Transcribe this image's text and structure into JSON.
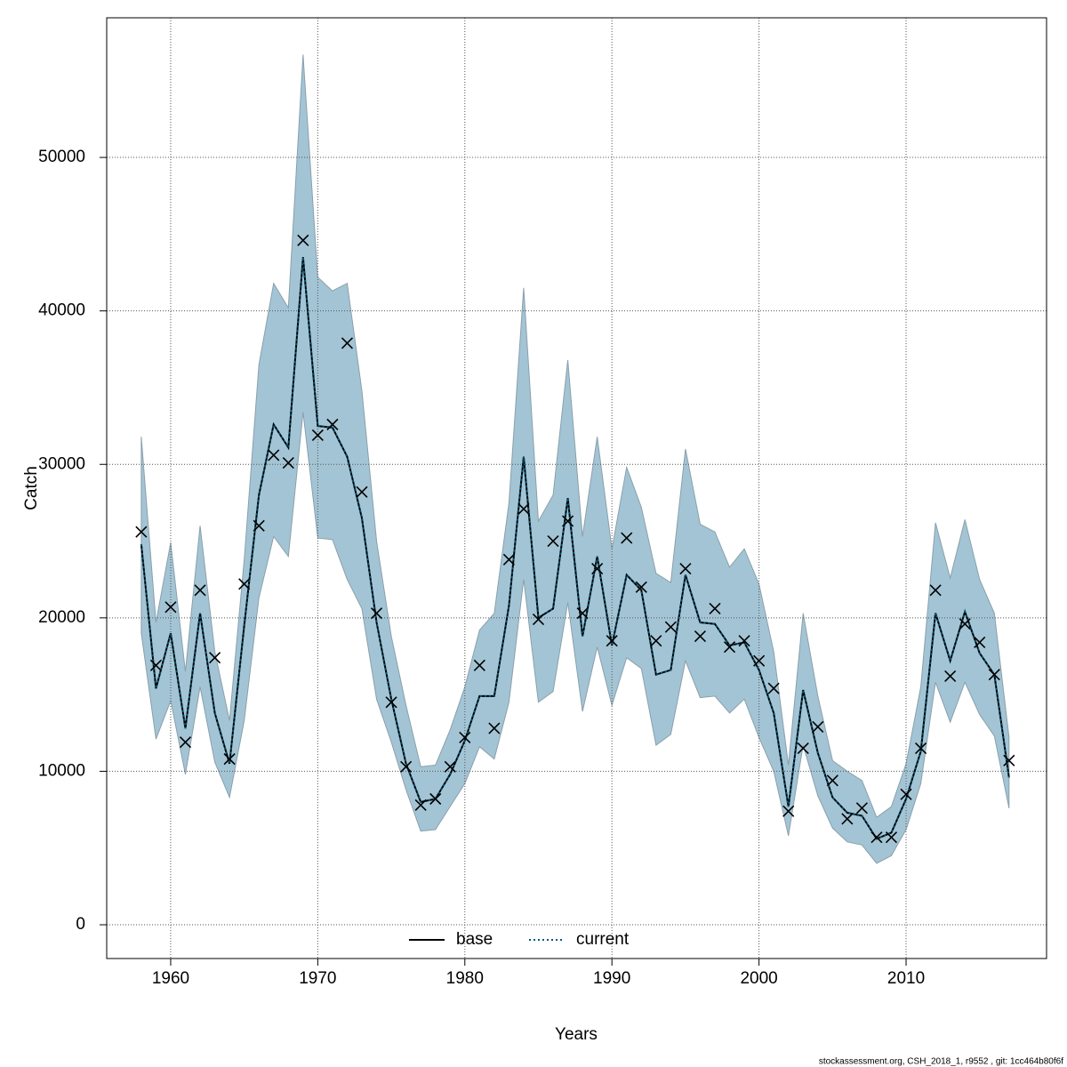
{
  "chart_data": {
    "type": "line",
    "xlabel": "Years",
    "ylabel": "Catch",
    "footer": "stockassessment.org, CSH_2018_1, r9552 , git: 1cc464b80f6f",
    "x": [
      1958,
      1959,
      1960,
      1961,
      1962,
      1963,
      1964,
      1965,
      1966,
      1967,
      1968,
      1969,
      1970,
      1971,
      1972,
      1973,
      1974,
      1975,
      1976,
      1977,
      1978,
      1979,
      1980,
      1981,
      1982,
      1983,
      1984,
      1985,
      1986,
      1987,
      1988,
      1989,
      1990,
      1991,
      1992,
      1993,
      1994,
      1995,
      1996,
      1997,
      1998,
      1999,
      2000,
      2001,
      2002,
      2003,
      2004,
      2005,
      2006,
      2007,
      2008,
      2009,
      2010,
      2011,
      2012,
      2013,
      2014,
      2015,
      2016,
      2017
    ],
    "xlim": [
      1955.65,
      2019.55
    ],
    "xticks": [
      1960,
      1970,
      1980,
      1990,
      2000,
      2010
    ],
    "ylim": [
      -2200,
      59100
    ],
    "yticks": [
      0,
      10000,
      20000,
      30000,
      40000,
      50000
    ],
    "grid": true,
    "legend": "bottom",
    "band": {
      "color": "#a3c4d4",
      "upper": [
        31800,
        19700,
        24900,
        16500,
        26000,
        17800,
        13300,
        23800,
        36500,
        41800,
        40200,
        56700,
        42200,
        41300,
        41800,
        34800,
        25000,
        18800,
        14300,
        10300,
        10400,
        12700,
        15500,
        19200,
        20300,
        27500,
        41500,
        26300,
        28000,
        36800,
        25300,
        31800,
        24500,
        29800,
        27200,
        22900,
        22300,
        31000,
        26100,
        25600,
        23300,
        24500,
        22200,
        17800,
        10400,
        20300,
        14900,
        10700,
        10000,
        9400,
        7000,
        7700,
        10500,
        15500,
        26200,
        22600,
        26400,
        22500,
        20300,
        12200
      ],
      "lower": [
        19000,
        12100,
        14600,
        9800,
        15500,
        10600,
        8300,
        13300,
        21300,
        25300,
        24000,
        33400,
        25200,
        25100,
        22500,
        20600,
        14700,
        11900,
        8800,
        6100,
        6200,
        7700,
        9200,
        11600,
        10800,
        14500,
        22500,
        14500,
        15200,
        21000,
        13900,
        18100,
        14300,
        17400,
        16700,
        11700,
        12400,
        17200,
        14800,
        14900,
        13800,
        14700,
        12200,
        10000,
        5800,
        11700,
        8400,
        6300,
        5400,
        5200,
        4000,
        4500,
        6200,
        9200,
        15800,
        13200,
        15800,
        13700,
        12300,
        7600
      ]
    },
    "series": [
      {
        "name": "base",
        "color": "#000000",
        "dash": "none",
        "values": [
          24800,
          15400,
          19000,
          12800,
          20300,
          13800,
          10500,
          19500,
          28000,
          32600,
          31100,
          43500,
          32500,
          32400,
          30500,
          26500,
          19700,
          14700,
          10500,
          8000,
          8200,
          9800,
          12000,
          14900,
          14900,
          20800,
          30500,
          20000,
          20600,
          27800,
          18800,
          24000,
          18200,
          22800,
          21800,
          16300,
          16600,
          22800,
          19700,
          19600,
          18200,
          18400,
          16600,
          13800,
          7700,
          15300,
          11200,
          8300,
          7300,
          7100,
          5600,
          6000,
          8200,
          11300,
          20300,
          17200,
          20400,
          17700,
          16300,
          9600
        ]
      },
      {
        "name": "current",
        "color": "#00587a",
        "dash": "2,3",
        "values": [
          24800,
          15400,
          19000,
          12800,
          20300,
          13800,
          10500,
          19500,
          28000,
          32600,
          31100,
          43500,
          32500,
          32400,
          30500,
          26500,
          19700,
          14700,
          10500,
          8000,
          8200,
          9800,
          12000,
          14900,
          14900,
          20800,
          30500,
          20000,
          20600,
          27800,
          18800,
          24000,
          18200,
          22800,
          21800,
          16300,
          16600,
          22800,
          19700,
          19600,
          18200,
          18400,
          16600,
          13800,
          7700,
          15300,
          11200,
          8300,
          7300,
          7100,
          5600,
          6000,
          8200,
          11300,
          20300,
          17200,
          20400,
          17700,
          16300,
          9600
        ]
      }
    ],
    "observed": {
      "color": "#000000",
      "values": [
        25600,
        16900,
        20700,
        11900,
        21800,
        17400,
        10800,
        22200,
        26000,
        30600,
        30100,
        44600,
        31900,
        32600,
        37900,
        28200,
        20300,
        14500,
        10300,
        7800,
        8200,
        10300,
        12200,
        16900,
        12800,
        23800,
        27100,
        19900,
        25000,
        26300,
        20300,
        23200,
        18500,
        25200,
        22000,
        18500,
        19400,
        23200,
        18800,
        20600,
        18100,
        18500,
        17200,
        15400,
        7400,
        11500,
        12900,
        9400,
        6900,
        7600,
        5700,
        5700,
        8500,
        11500,
        21800,
        16200,
        19600,
        18400,
        16300,
        10700
      ]
    }
  }
}
